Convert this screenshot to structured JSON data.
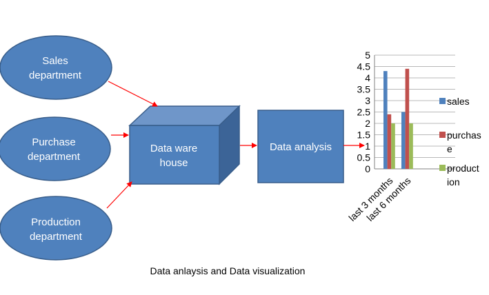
{
  "departments": [
    {
      "line1": "Sales",
      "line2": "department"
    },
    {
      "line1": "Purchase",
      "line2": "department"
    },
    {
      "line1": "Production",
      "line2": "department"
    }
  ],
  "warehouse": {
    "line1": "Data ware",
    "line2": "house"
  },
  "analysis": {
    "label": "Data analysis"
  },
  "caption": "Data anlaysis and Data visualization",
  "colors": {
    "shape_fill": "#4f81bd",
    "shape_stroke": "#385d8a",
    "cube_top": "#6f96c9",
    "cube_side": "#3c6497",
    "arrow": "#ff0000",
    "sales": "#4f81bd",
    "purchase": "#c0504d",
    "production": "#9bbb59"
  },
  "chart_data": {
    "type": "bar",
    "categories": [
      "last 3 months",
      "last 6 months"
    ],
    "series": [
      {
        "name": "sales",
        "legend_lines": [
          "sales"
        ],
        "values": [
          4.3,
          2.5
        ]
      },
      {
        "name": "purchase",
        "legend_lines": [
          "purchas",
          "e"
        ],
        "values": [
          2.4,
          4.4
        ]
      },
      {
        "name": "production",
        "legend_lines": [
          "product",
          "ion"
        ],
        "values": [
          2.0,
          2.0
        ]
      }
    ],
    "ylim": [
      0,
      5
    ],
    "yticks": [
      "0",
      "0.5",
      "1",
      "1.5",
      "2",
      "2.5",
      "3",
      "3.5",
      "4",
      "4.5",
      "5"
    ],
    "grid": true,
    "legend_position": "right"
  }
}
